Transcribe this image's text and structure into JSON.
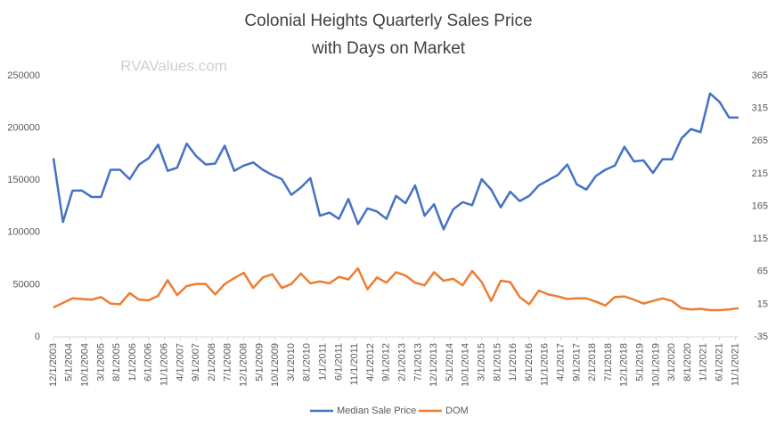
{
  "chart_data": {
    "type": "line",
    "title": "Colonial Heights Quarterly Sales Price",
    "subtitle": "with Days on Market",
    "annotation": "RVAValues.com",
    "x": [
      "12/1/2003",
      "3/1/2004",
      "6/1/2004",
      "9/1/2004",
      "12/1/2004",
      "3/1/2005",
      "6/1/2005",
      "9/1/2005",
      "12/1/2005",
      "3/1/2006",
      "6/1/2006",
      "9/1/2006",
      "12/1/2006",
      "3/1/2007",
      "6/1/2007",
      "9/1/2007",
      "12/1/2007",
      "3/1/2008",
      "6/1/2008",
      "9/1/2008",
      "12/1/2008",
      "3/1/2009",
      "6/1/2009",
      "9/1/2009",
      "12/1/2009",
      "3/1/2010",
      "6/1/2010",
      "9/1/2010",
      "12/1/2010",
      "3/1/2011",
      "6/1/2011",
      "9/1/2011",
      "12/1/2011",
      "3/1/2012",
      "6/1/2012",
      "9/1/2012",
      "12/1/2012",
      "3/1/2013",
      "6/1/2013",
      "9/1/2013",
      "12/1/2013",
      "3/1/2014",
      "6/1/2014",
      "9/1/2014",
      "12/1/2014",
      "3/1/2015",
      "6/1/2015",
      "9/1/2015",
      "12/1/2015",
      "3/1/2016",
      "6/1/2016",
      "9/1/2016",
      "12/1/2016",
      "3/1/2017",
      "6/1/2017",
      "9/1/2017",
      "12/1/2017",
      "3/1/2018",
      "6/1/2018",
      "9/1/2018",
      "12/1/2018",
      "3/1/2019",
      "6/1/2019",
      "9/1/2019",
      "12/1/2019",
      "3/1/2020",
      "6/1/2020",
      "9/1/2020",
      "12/1/2020",
      "3/1/2021",
      "6/1/2021",
      "9/1/2021",
      "12/1/2021"
    ],
    "xlim": [
      "12/1/2003",
      "12/1/2021"
    ],
    "xticks": [
      "12/1/2003",
      "5/1/2004",
      "10/1/2004",
      "3/1/2005",
      "8/1/2005",
      "1/1/2006",
      "6/1/2006",
      "11/1/2006",
      "4/1/2007",
      "9/1/2007",
      "2/1/2008",
      "7/1/2008",
      "12/1/2008",
      "5/1/2009",
      "10/1/2009",
      "3/1/2010",
      "8/1/2010",
      "1/1/2011",
      "6/1/2011",
      "11/1/2011",
      "4/1/2012",
      "9/1/2012",
      "2/1/2013",
      "7/1/2013",
      "12/1/2013",
      "5/1/2014",
      "10/1/2014",
      "3/1/2015",
      "8/1/2015",
      "1/1/2016",
      "6/1/2016",
      "11/1/2016",
      "4/1/2017",
      "9/1/2017",
      "2/1/2018",
      "7/1/2018",
      "12/1/2018",
      "5/1/2019",
      "10/1/2019",
      "3/1/2020",
      "8/1/2020",
      "1/1/2021",
      "6/1/2021",
      "11/1/2021"
    ],
    "ylim": [
      0,
      250000
    ],
    "yticks": [
      0,
      50000,
      100000,
      150000,
      200000,
      250000
    ],
    "y2lim": [
      -35,
      365
    ],
    "y2ticks": [
      -35,
      15,
      65,
      115,
      165,
      215,
      265,
      315,
      365
    ],
    "grid": false,
    "legend": "bottom",
    "series": [
      {
        "name": "Median Sale Price",
        "color": "#4472c4",
        "values": [
          171000,
          110000,
          140000,
          140000,
          134000,
          134000,
          160000,
          160000,
          151000,
          165000,
          171000,
          184000,
          159000,
          162000,
          185000,
          173000,
          165000,
          166000,
          183000,
          159000,
          164000,
          167000,
          160000,
          155000,
          151000,
          136000,
          143000,
          152000,
          116000,
          119000,
          113000,
          132000,
          108000,
          123000,
          120000,
          113000,
          135000,
          128000,
          145000,
          116000,
          127000,
          103000,
          122000,
          129000,
          126000,
          151000,
          141000,
          124000,
          139000,
          130000,
          135000,
          145000,
          150000,
          155000,
          165000,
          146000,
          141000,
          154000,
          160000,
          164000,
          182000,
          168000,
          169000,
          157000,
          170000,
          170000,
          190000,
          199000,
          196000,
          233000,
          225000,
          210000,
          210000
        ]
      },
      {
        "name": "DOM",
        "color": "#ed7d31",
        "axis": "y2",
        "values": [
          10,
          17,
          24,
          23,
          22,
          26,
          16,
          15,
          32,
          22,
          21,
          28,
          52,
          29,
          43,
          46,
          46,
          30,
          46,
          55,
          63,
          40,
          56,
          61,
          40,
          46,
          62,
          47,
          50,
          47,
          57,
          53,
          70,
          38,
          56,
          48,
          64,
          59,
          48,
          44,
          64,
          51,
          54,
          44,
          66,
          49,
          20,
          51,
          49,
          26,
          15,
          36,
          30,
          27,
          23,
          24,
          24,
          19,
          13,
          26,
          27,
          22,
          16,
          20,
          24,
          20,
          9,
          7,
          8,
          6,
          6,
          7,
          9
        ]
      }
    ]
  }
}
